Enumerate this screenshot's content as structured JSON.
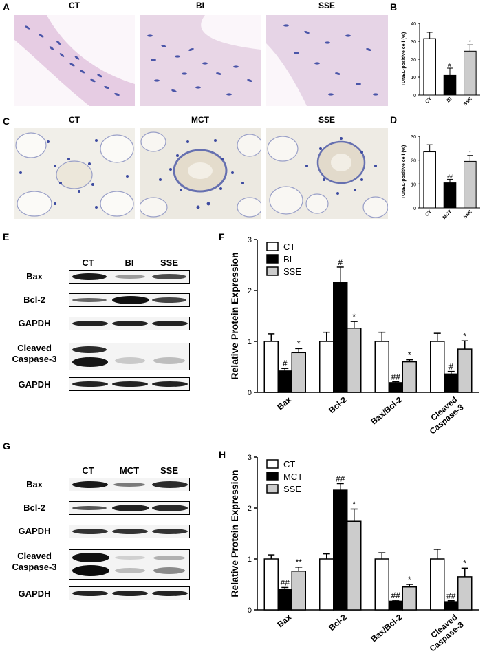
{
  "panels": {
    "A": {
      "label": "A",
      "images": [
        {
          "title": "CT",
          "color": "#e6cce3"
        },
        {
          "title": "BI",
          "color": "#e8d6e6"
        },
        {
          "title": "SSE",
          "color": "#e6d4e6"
        }
      ]
    },
    "B": {
      "label": "B",
      "chart_data": {
        "type": "bar",
        "categories": [
          "CT",
          "BI",
          "SSE"
        ],
        "values": [
          31.5,
          11,
          24.5
        ],
        "errors": [
          3.5,
          4,
          3.5
        ],
        "significance": [
          "",
          "#",
          "*"
        ],
        "colors": [
          "#ffffff",
          "#000000",
          "#cccccc"
        ],
        "ylabel": "TUNEL-positive cell (%)",
        "ylim": [
          0,
          40
        ],
        "yticks": [
          0,
          10,
          20,
          30,
          40
        ]
      }
    },
    "C": {
      "label": "C",
      "images": [
        {
          "title": "CT",
          "color": "#f1efe9"
        },
        {
          "title": "MCT",
          "color": "#ece9e1"
        },
        {
          "title": "SSE",
          "color": "#eeebe4"
        }
      ]
    },
    "D": {
      "label": "D",
      "chart_data": {
        "type": "bar",
        "categories": [
          "CT",
          "MCT",
          "SSE"
        ],
        "values": [
          23.5,
          10.5,
          19.5
        ],
        "errors": [
          3,
          1.5,
          2.5
        ],
        "significance": [
          "",
          "##",
          "*"
        ],
        "colors": [
          "#ffffff",
          "#000000",
          "#cccccc"
        ],
        "ylabel": "TUNEL-positive cell (%)",
        "ylim": [
          0,
          30
        ],
        "yticks": [
          0,
          10,
          20,
          30
        ]
      }
    },
    "E": {
      "label": "E",
      "lanes": [
        "CT",
        "BI",
        "SSE"
      ],
      "rows": [
        "Bax",
        "Bcl-2",
        "GAPDH",
        "Cleaved Caspase-3",
        "GAPDH"
      ]
    },
    "F": {
      "label": "F",
      "chart_data": {
        "type": "bar",
        "categories": [
          "Bax",
          "Bcl-2",
          "Bax/Bcl-2",
          "Cleaved Caspase-3"
        ],
        "series": [
          {
            "name": "CT",
            "color": "#ffffff",
            "values": [
              1.0,
              1.0,
              1.0,
              1.0
            ],
            "errors": [
              0.15,
              0.18,
              0.18,
              0.16
            ],
            "significance": [
              "",
              "",
              "",
              ""
            ]
          },
          {
            "name": "BI",
            "color": "#000000",
            "values": [
              0.42,
              2.16,
              0.19,
              0.36
            ],
            "errors": [
              0.05,
              0.3,
              0.02,
              0.05
            ],
            "significance": [
              "#",
              "#",
              "##",
              "#"
            ]
          },
          {
            "name": "SSE",
            "color": "#cccccc",
            "values": [
              0.78,
              1.26,
              0.6,
              0.85
            ],
            "errors": [
              0.08,
              0.13,
              0.04,
              0.16
            ],
            "significance": [
              "*",
              "*",
              "*",
              "*"
            ]
          }
        ],
        "ylabel": "Relative Protein Expression",
        "ylim": [
          0,
          3
        ],
        "yticks": [
          0,
          1,
          2,
          3
        ],
        "legend": "top-left"
      }
    },
    "G": {
      "label": "G",
      "lanes": [
        "CT",
        "MCT",
        "SSE"
      ],
      "rows": [
        "Bax",
        "Bcl-2",
        "GAPDH",
        "Cleaved Caspase-3",
        "GAPDH"
      ]
    },
    "H": {
      "label": "H",
      "chart_data": {
        "type": "bar",
        "categories": [
          "Bax",
          "Bcl-2",
          "Bax/Bcl-2",
          "Cleaved Caspase-3"
        ],
        "series": [
          {
            "name": "CT",
            "color": "#ffffff",
            "values": [
              1.0,
              1.0,
              1.0,
              1.0
            ],
            "errors": [
              0.08,
              0.1,
              0.12,
              0.19
            ],
            "significance": [
              "",
              "",
              "",
              ""
            ]
          },
          {
            "name": "MCT",
            "color": "#000000",
            "values": [
              0.4,
              2.35,
              0.17,
              0.16
            ],
            "errors": [
              0.04,
              0.13,
              0.02,
              0.02
            ],
            "significance": [
              "##",
              "##",
              "##",
              "##"
            ]
          },
          {
            "name": "SSE",
            "color": "#cccccc",
            "values": [
              0.76,
              1.74,
              0.45,
              0.65
            ],
            "errors": [
              0.08,
              0.24,
              0.05,
              0.17
            ],
            "significance": [
              "**",
              "*",
              "*",
              "*"
            ]
          }
        ],
        "ylabel": "Relative Protein Expression",
        "ylim": [
          0,
          3
        ],
        "yticks": [
          0,
          1,
          2,
          3
        ],
        "legend": "top-left"
      }
    }
  }
}
